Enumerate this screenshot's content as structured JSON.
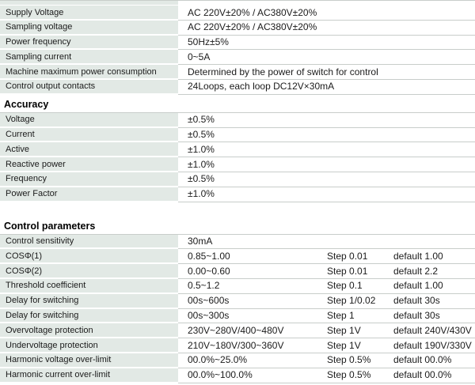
{
  "colors": {
    "label_bg": "#e2e9e5",
    "separator_line": "#c8cdca",
    "text": "#1b1b1b"
  },
  "general": {
    "rows": [
      {
        "label": "Supply Voltage",
        "value": "AC 220V±20% / AC380V±20%"
      },
      {
        "label": "Sampling voltage",
        "value": "AC 220V±20% / AC380V±20%"
      },
      {
        "label": "Power frequency",
        "value": "50Hz±5%"
      },
      {
        "label": "Sampling current",
        "value": "0~5A"
      },
      {
        "label": "Machine maximum power consumption",
        "value": "Determined by the power of switch for control"
      },
      {
        "label": "Control output contacts",
        "value": "24Loops, each loop DC12V×30mA"
      }
    ]
  },
  "accuracy": {
    "heading": "Accuracy",
    "rows": [
      {
        "label": "Voltage",
        "value": "±0.5%"
      },
      {
        "label": "Current",
        "value": "±0.5%"
      },
      {
        "label": "Active",
        "value": "±1.0%"
      },
      {
        "label": "Reactive power",
        "value": "±1.0%"
      },
      {
        "label": "Frequency",
        "value": "±0.5%"
      },
      {
        "label": "Power Factor",
        "value": "±1.0%"
      }
    ]
  },
  "control": {
    "heading": "Control parameters",
    "rows": [
      {
        "label": "Control sensitivity",
        "value": "30mA",
        "step": "",
        "default": ""
      },
      {
        "label": "COSΦ(1)",
        "value": "0.85~1.00",
        "step": "Step 0.01",
        "default": "default 1.00"
      },
      {
        "label": "COSΦ(2)",
        "value": "0.00~0.60",
        "step": "Step 0.01",
        "default": "default 2.2"
      },
      {
        "label": "Threshold coefficient",
        "value": "0.5~1.2",
        "step": "Step 0.1",
        "default": "default 1.00"
      },
      {
        "label": "Delay for switching",
        "value": "00s~600s",
        "step": "Step 1/0.02",
        "default": "default 30s"
      },
      {
        "label": "Delay for switching",
        "value": "00s~300s",
        "step": "Step 1",
        "default": "default 30s"
      },
      {
        "label": "Overvoltage protection",
        "value": "230V~280V/400~480V",
        "step": "Step 1V",
        "default": "default 240V/430V"
      },
      {
        "label": "Undervoltage protection",
        "value": "210V~180V/300~360V",
        "step": "Step 1V",
        "default": "default 190V/330V"
      },
      {
        "label": "Harmonic voltage over-limit",
        "value": "00.0%~25.0%",
        "step": "Step 0.5%",
        "default": "default 00.0%"
      },
      {
        "label": "Harmonic current over-limit",
        "value": "00.0%~100.0%",
        "step": "Step 0.5%",
        "default": "default 00.0%"
      }
    ]
  }
}
